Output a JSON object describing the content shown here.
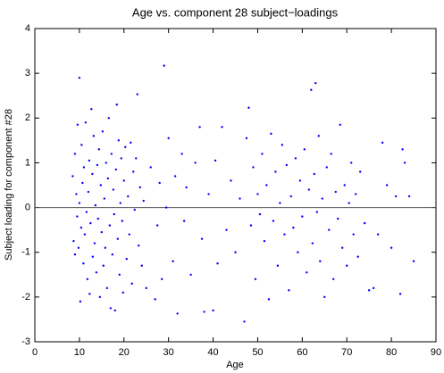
{
  "chart_data": {
    "type": "scatter",
    "title": "Age vs. component 28 subject−loadings",
    "x_label": "Age",
    "y_label": "Subject loading for component #28",
    "color": "#0000ff",
    "reference_line": 0,
    "xlim": [
      0,
      90
    ],
    "xticks": [
      0,
      10,
      20,
      30,
      40,
      50,
      60,
      70,
      80,
      90
    ],
    "ylim": [
      -3,
      4
    ],
    "yticks": [
      -3,
      -2,
      -1,
      0,
      1,
      2,
      3,
      4
    ],
    "x": [
      8.5,
      8.7,
      9,
      9,
      9.3,
      9.5,
      9.6,
      9.8,
      10,
      10,
      10.2,
      10.4,
      10.5,
      10.7,
      10.9,
      11,
      11.2,
      11.4,
      11.6,
      11.8,
      12,
      12.2,
      12.3,
      12.5,
      12.7,
      12.9,
      13,
      13.2,
      13.4,
      13.6,
      13.8,
      14,
      14.2,
      14.4,
      14.6,
      14.8,
      15,
      15.2,
      15.4,
      15.6,
      15.8,
      16,
      16.2,
      16.4,
      16.6,
      16.8,
      17,
      17.2,
      17.4,
      17.6,
      17.8,
      18,
      18.2,
      18.4,
      18.6,
      18.8,
      19,
      19.2,
      19.4,
      19.6,
      19.8,
      20,
      20.3,
      20.6,
      20.9,
      21.2,
      21.5,
      21.8,
      22.1,
      22.4,
      22.7,
      23,
      23.3,
      23.6,
      24,
      24.4,
      25,
      26,
      27,
      27.5,
      28,
      28.5,
      29,
      29.5,
      30,
      31,
      31.5,
      32,
      33,
      33.5,
      34,
      35,
      36,
      37,
      37.5,
      38,
      39,
      40,
      40.5,
      41,
      42,
      43,
      44,
      45,
      46,
      47,
      47.5,
      48,
      48.5,
      49,
      49.5,
      50,
      50.5,
      51,
      51.5,
      52,
      52.5,
      53,
      53.5,
      54,
      54.5,
      55,
      55.5,
      56,
      56.5,
      57,
      57.5,
      58,
      58.5,
      59,
      59.5,
      60,
      60.5,
      61,
      61.5,
      62,
      62.3,
      62.7,
      63,
      63.3,
      63.7,
      64,
      64.5,
      65,
      65.5,
      66,
      66.5,
      67,
      67.5,
      68,
      68.5,
      69,
      69.5,
      70,
      70.5,
      71,
      71.5,
      72,
      72.5,
      73,
      74,
      75,
      76,
      77,
      78,
      79,
      80,
      81,
      82,
      82.5,
      83,
      84,
      85
    ],
    "values": [
      0.7,
      -0.75,
      1.2,
      -1.05,
      0.3,
      -0.2,
      1.85,
      -0.9,
      2.9,
      0.1,
      -2.1,
      -0.45,
      1.4,
      0.55,
      -1.25,
      0.9,
      -0.6,
      1.9,
      -0.1,
      -1.6,
      0.35,
      1.05,
      -1.93,
      -0.35,
      2.2,
      0.75,
      -1.1,
      1.6,
      -0.8,
      0.05,
      -1.45,
      0.95,
      -0.25,
      1.3,
      -2.0,
      0.5,
      -0.55,
      1.7,
      -1.3,
      0.2,
      -0.9,
      1.0,
      -1.8,
      0.65,
      2.0,
      -0.4,
      -2.25,
      1.2,
      -1.05,
      0.4,
      -0.15,
      -2.3,
      0.85,
      2.3,
      -0.7,
      1.5,
      -1.5,
      0.1,
      1.1,
      -0.3,
      -1.9,
      0.6,
      1.35,
      -1.15,
      0.25,
      -0.6,
      1.45,
      -1.7,
      0.8,
      -0.05,
      1.1,
      2.53,
      -0.85,
      0.45,
      -1.3,
      0.15,
      -1.8,
      0.9,
      -2.05,
      -0.4,
      0.55,
      -1.6,
      3.17,
      0.0,
      1.55,
      -1.2,
      0.7,
      -2.37,
      1.2,
      -0.3,
      0.45,
      -1.5,
      1.0,
      1.8,
      -0.7,
      -2.33,
      0.3,
      -2.3,
      1.05,
      -1.25,
      1.8,
      -0.5,
      0.6,
      -1.0,
      0.2,
      -2.55,
      1.55,
      2.23,
      -0.4,
      0.9,
      -1.6,
      0.3,
      -0.15,
      1.2,
      -0.75,
      0.5,
      -2.05,
      1.65,
      -0.3,
      0.8,
      -1.3,
      0.1,
      1.4,
      -0.6,
      0.95,
      -1.85,
      0.25,
      -0.45,
      1.1,
      -1.0,
      0.6,
      -0.2,
      1.3,
      -1.45,
      0.4,
      2.63,
      -0.8,
      0.75,
      2.78,
      -0.1,
      1.6,
      -1.2,
      0.2,
      -2.0,
      0.9,
      -0.5,
      1.2,
      -1.6,
      0.35,
      -0.25,
      1.85,
      -0.9,
      0.5,
      -1.3,
      0.1,
      1.0,
      -0.6,
      0.3,
      -1.1,
      0.8,
      -0.35,
      -1.85,
      -1.8,
      -0.6,
      1.45,
      0.5,
      -0.9,
      0.25,
      -1.93,
      1.3,
      1.0,
      0.25,
      -1.2
    ]
  }
}
